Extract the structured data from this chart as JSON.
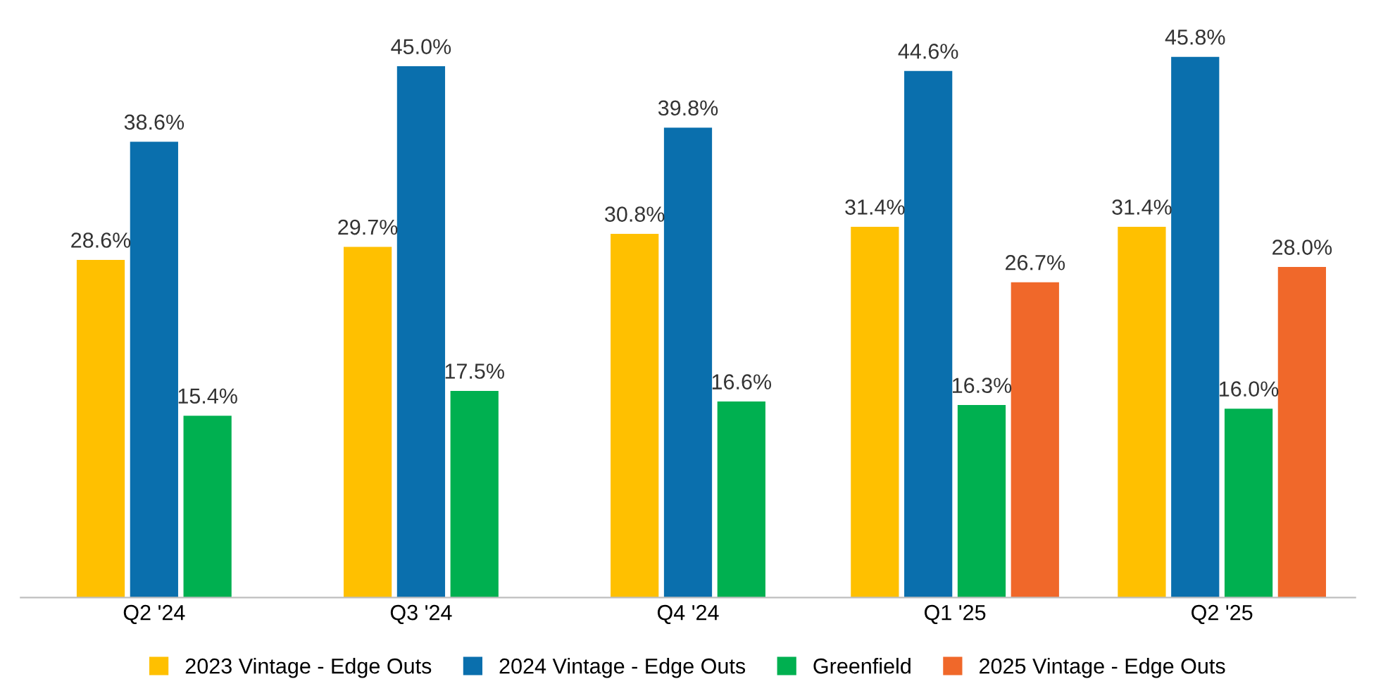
{
  "chart_data": {
    "type": "bar",
    "categories": [
      "Q2 '24",
      "Q3 '24",
      "Q4 '24",
      "Q1 '25",
      "Q2 '25"
    ],
    "series": [
      {
        "name": "2023 Vintage - Edge Outs",
        "color": "#ffc000",
        "values": [
          28.6,
          29.7,
          30.8,
          31.4,
          31.4
        ],
        "value_labels": [
          "28.6%",
          "29.7%",
          "30.8%",
          "31.4%",
          "31.4%"
        ]
      },
      {
        "name": "2024 Vintage - Edge Outs",
        "color": "#0a6fad",
        "values": [
          38.6,
          45.0,
          39.8,
          44.6,
          45.8
        ],
        "value_labels": [
          "38.6%",
          "45.0%",
          "39.8%",
          "44.6%",
          "45.8%"
        ]
      },
      {
        "name": "Greenfield",
        "color": "#00b050",
        "values": [
          15.4,
          17.5,
          16.6,
          16.3,
          16.0
        ],
        "value_labels": [
          "15.4%",
          "17.5%",
          "16.6%",
          "16.3%",
          "16.0%"
        ]
      },
      {
        "name": "2025 Vintage - Edge Outs",
        "color": "#f0682a",
        "values": [
          null,
          null,
          null,
          26.7,
          28.0
        ],
        "value_labels": [
          null,
          null,
          null,
          "26.7%",
          "28.0%"
        ]
      }
    ],
    "legend": "bottom",
    "grid": false,
    "tick_labels": "x"
  }
}
